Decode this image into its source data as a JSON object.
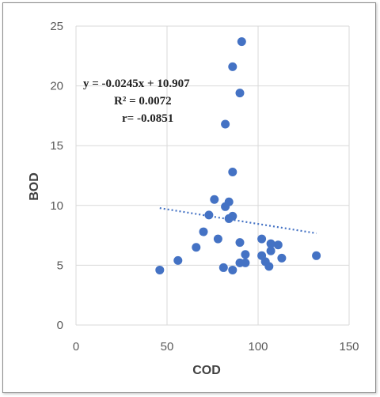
{
  "chart_data": {
    "type": "scatter",
    "xlabel": "COD",
    "ylabel": "BOD",
    "xlim": [
      0,
      150
    ],
    "ylim": [
      0,
      25
    ],
    "x_ticks": [
      "0",
      "50",
      "100",
      "150"
    ],
    "y_ticks": [
      "0",
      "5",
      "10",
      "15",
      "20",
      "25"
    ],
    "grid": "vertical and horizontal major gridlines",
    "marker_color": "#4472c4",
    "trendline": {
      "style": "dotted linear",
      "slope": -0.0245,
      "intercept": 10.907,
      "x_range": [
        46,
        132
      ]
    },
    "annotations": [
      "y = -0.0245x + 10.907",
      "R² = 0.0072",
      "r= -0.0851"
    ],
    "points": [
      {
        "x": 46,
        "y": 4.6
      },
      {
        "x": 56,
        "y": 5.4
      },
      {
        "x": 66,
        "y": 6.5
      },
      {
        "x": 70,
        "y": 7.8
      },
      {
        "x": 73,
        "y": 9.2
      },
      {
        "x": 76,
        "y": 10.5
      },
      {
        "x": 78,
        "y": 7.2
      },
      {
        "x": 81,
        "y": 4.8
      },
      {
        "x": 82,
        "y": 9.9
      },
      {
        "x": 82,
        "y": 16.8
      },
      {
        "x": 84,
        "y": 10.3
      },
      {
        "x": 84,
        "y": 8.9
      },
      {
        "x": 86,
        "y": 21.6
      },
      {
        "x": 86,
        "y": 12.8
      },
      {
        "x": 86,
        "y": 9.1
      },
      {
        "x": 86,
        "y": 4.6
      },
      {
        "x": 90,
        "y": 19.4
      },
      {
        "x": 90,
        "y": 6.9
      },
      {
        "x": 90,
        "y": 5.2
      },
      {
        "x": 91,
        "y": 23.7
      },
      {
        "x": 93,
        "y": 5.9
      },
      {
        "x": 93,
        "y": 5.2
      },
      {
        "x": 102,
        "y": 7.2
      },
      {
        "x": 102,
        "y": 5.8
      },
      {
        "x": 104,
        "y": 5.3
      },
      {
        "x": 106,
        "y": 4.9
      },
      {
        "x": 107,
        "y": 6.8
      },
      {
        "x": 107,
        "y": 6.2
      },
      {
        "x": 111,
        "y": 6.7
      },
      {
        "x": 113,
        "y": 5.6
      },
      {
        "x": 132,
        "y": 5.8
      }
    ]
  }
}
